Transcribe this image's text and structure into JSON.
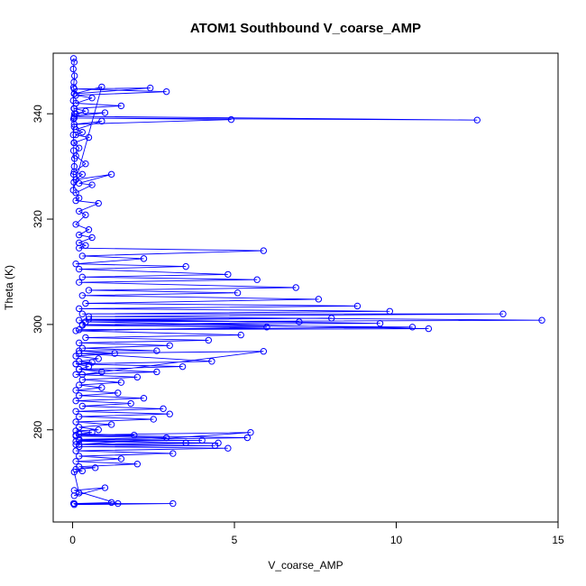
{
  "chart_data": {
    "type": "line",
    "title": "ATOM1 Southbound V_coarse_AMP",
    "xlabel": "V_coarse_AMP",
    "ylabel": "Theta (K)",
    "xlim": [
      -0.6,
      15.0
    ],
    "ylim": [
      262.5,
      351.5
    ],
    "xticks": [
      0,
      5,
      10,
      15
    ],
    "yticks": [
      280,
      300,
      320,
      340
    ],
    "grid": false,
    "legend": "none",
    "markers": "open-circle",
    "colors": {
      "series": "#0000ff",
      "axis": "#000000",
      "background": "#ffffff"
    },
    "series": [
      {
        "x": [
          0.03,
          0.05,
          0.02,
          0.06,
          0.04,
          0.03,
          0.05,
          0.02,
          0.04,
          0.06,
          0.03,
          0.05,
          0.02,
          0.04,
          0.03,
          0.06,
          0.05,
          0.03,
          0.04,
          0.02,
          0.9,
          0.05,
          2.4,
          0.05,
          2.9,
          0.1,
          0.6,
          0.1,
          1.5,
          0.05,
          0.4,
          0.1,
          1.0,
          0.05,
          12.5,
          0.05,
          4.9,
          0.05,
          0.9,
          0.1,
          0.3,
          0.1,
          0.5,
          0.05,
          0.2,
          0.1,
          0.4,
          0.05,
          0.3,
          0.1,
          1.2,
          0.2,
          0.6,
          0.1,
          0.2,
          0.1,
          0.8,
          0.2,
          0.4,
          0.1,
          0.5,
          0.2,
          0.6,
          0.2,
          0.4,
          0.2,
          5.9,
          0.3,
          2.2,
          0.1,
          3.5,
          0.2,
          4.8,
          0.3,
          5.7,
          0.2,
          6.9,
          0.5,
          5.1,
          0.3,
          7.6,
          0.4,
          8.8,
          0.2,
          9.8,
          0.3,
          13.3,
          0.5,
          14.5,
          0.4,
          11.0,
          0.2,
          10.5,
          0.3,
          9.5,
          0.5,
          8.0,
          0.2,
          7.0,
          0.3,
          6.0,
          0.1,
          5.2,
          0.4,
          4.2,
          0.2,
          3.0,
          0.3,
          2.6,
          0.2,
          1.3,
          0.1,
          0.8,
          0.2,
          0.6,
          0.1,
          0.5,
          0.2,
          0.9,
          0.3,
          5.9,
          0.2,
          4.3,
          0.1,
          3.4,
          0.2,
          2.6,
          0.1,
          2.0,
          0.3,
          1.5,
          0.2,
          0.9,
          0.1,
          1.4,
          0.2,
          2.2,
          0.1,
          1.8,
          0.3,
          2.8,
          0.1,
          3.0,
          0.2,
          2.5,
          0.1,
          1.2,
          0.2,
          0.8,
          0.1,
          0.6,
          0.2,
          1.9,
          0.1,
          2.9,
          0.2,
          4.0,
          0.1,
          4.5,
          0.2,
          5.5,
          0.1,
          5.4,
          0.2,
          3.5,
          0.1,
          4.4,
          0.2,
          4.8,
          0.1,
          3.1,
          0.2,
          1.5,
          0.1,
          2.0,
          0.2,
          0.7,
          0.1,
          0.3,
          0.05,
          0.2,
          0.05,
          1.0,
          0.05,
          1.4,
          0.05,
          3.1,
          0.05,
          1.2,
          0.03
        ],
        "y": [
          350.5,
          349.8,
          348.5,
          347.2,
          346.0,
          345.0,
          343.8,
          342.5,
          341.0,
          340.0,
          339.0,
          337.5,
          336.0,
          334.5,
          333.0,
          331.5,
          330.0,
          328.5,
          327.0,
          325.5,
          345.1,
          343.8,
          344.9,
          344.7,
          344.2,
          343.5,
          343.0,
          342.0,
          341.5,
          341.0,
          340.5,
          340.0,
          340.2,
          339.5,
          338.8,
          339.2,
          338.9,
          338.0,
          338.6,
          337.0,
          336.5,
          336.0,
          335.5,
          334.5,
          333.5,
          332.0,
          330.5,
          329.0,
          328.5,
          327.5,
          328.5,
          326.8,
          326.5,
          325.0,
          324.0,
          323.5,
          323.0,
          321.5,
          320.8,
          319.0,
          318.0,
          317.0,
          316.5,
          315.5,
          315.0,
          314.5,
          314.0,
          313.0,
          312.5,
          311.5,
          311.0,
          310.5,
          309.5,
          309.0,
          308.5,
          308.0,
          307.0,
          306.5,
          306.0,
          305.5,
          304.8,
          304.0,
          303.5,
          303.0,
          302.5,
          302.0,
          302.0,
          301.5,
          300.8,
          300.5,
          299.2,
          299.0,
          299.5,
          300.0,
          300.2,
          301.0,
          301.2,
          300.8,
          300.5,
          299.8,
          299.5,
          298.8,
          298.0,
          297.5,
          297.0,
          296.5,
          296.0,
          295.5,
          295.0,
          295.0,
          294.5,
          294.0,
          293.5,
          293.0,
          292.8,
          292.5,
          292.0,
          291.5,
          291.0,
          290.5,
          294.9,
          294.5,
          293.0,
          292.5,
          292.0,
          291.5,
          291.0,
          290.5,
          290.0,
          289.5,
          289.0,
          288.5,
          288.0,
          287.5,
          287.0,
          286.5,
          286.0,
          285.5,
          285.0,
          284.5,
          284.0,
          283.5,
          283.0,
          282.5,
          282.0,
          281.5,
          281.0,
          280.5,
          280.0,
          279.8,
          279.5,
          279.2,
          279.0,
          278.8,
          278.5,
          278.2,
          278.0,
          277.8,
          277.5,
          277.2,
          279.5,
          279.0,
          278.5,
          278.0,
          277.5,
          277.2,
          277.0,
          276.8,
          276.5,
          276.0,
          275.5,
          275.0,
          274.5,
          274.0,
          273.5,
          273.0,
          272.8,
          272.5,
          272.2,
          272.0,
          268.0,
          267.5,
          269.0,
          268.5,
          266.0,
          266.0,
          266.0,
          265.8,
          266.2,
          266.0
        ]
      }
    ]
  }
}
